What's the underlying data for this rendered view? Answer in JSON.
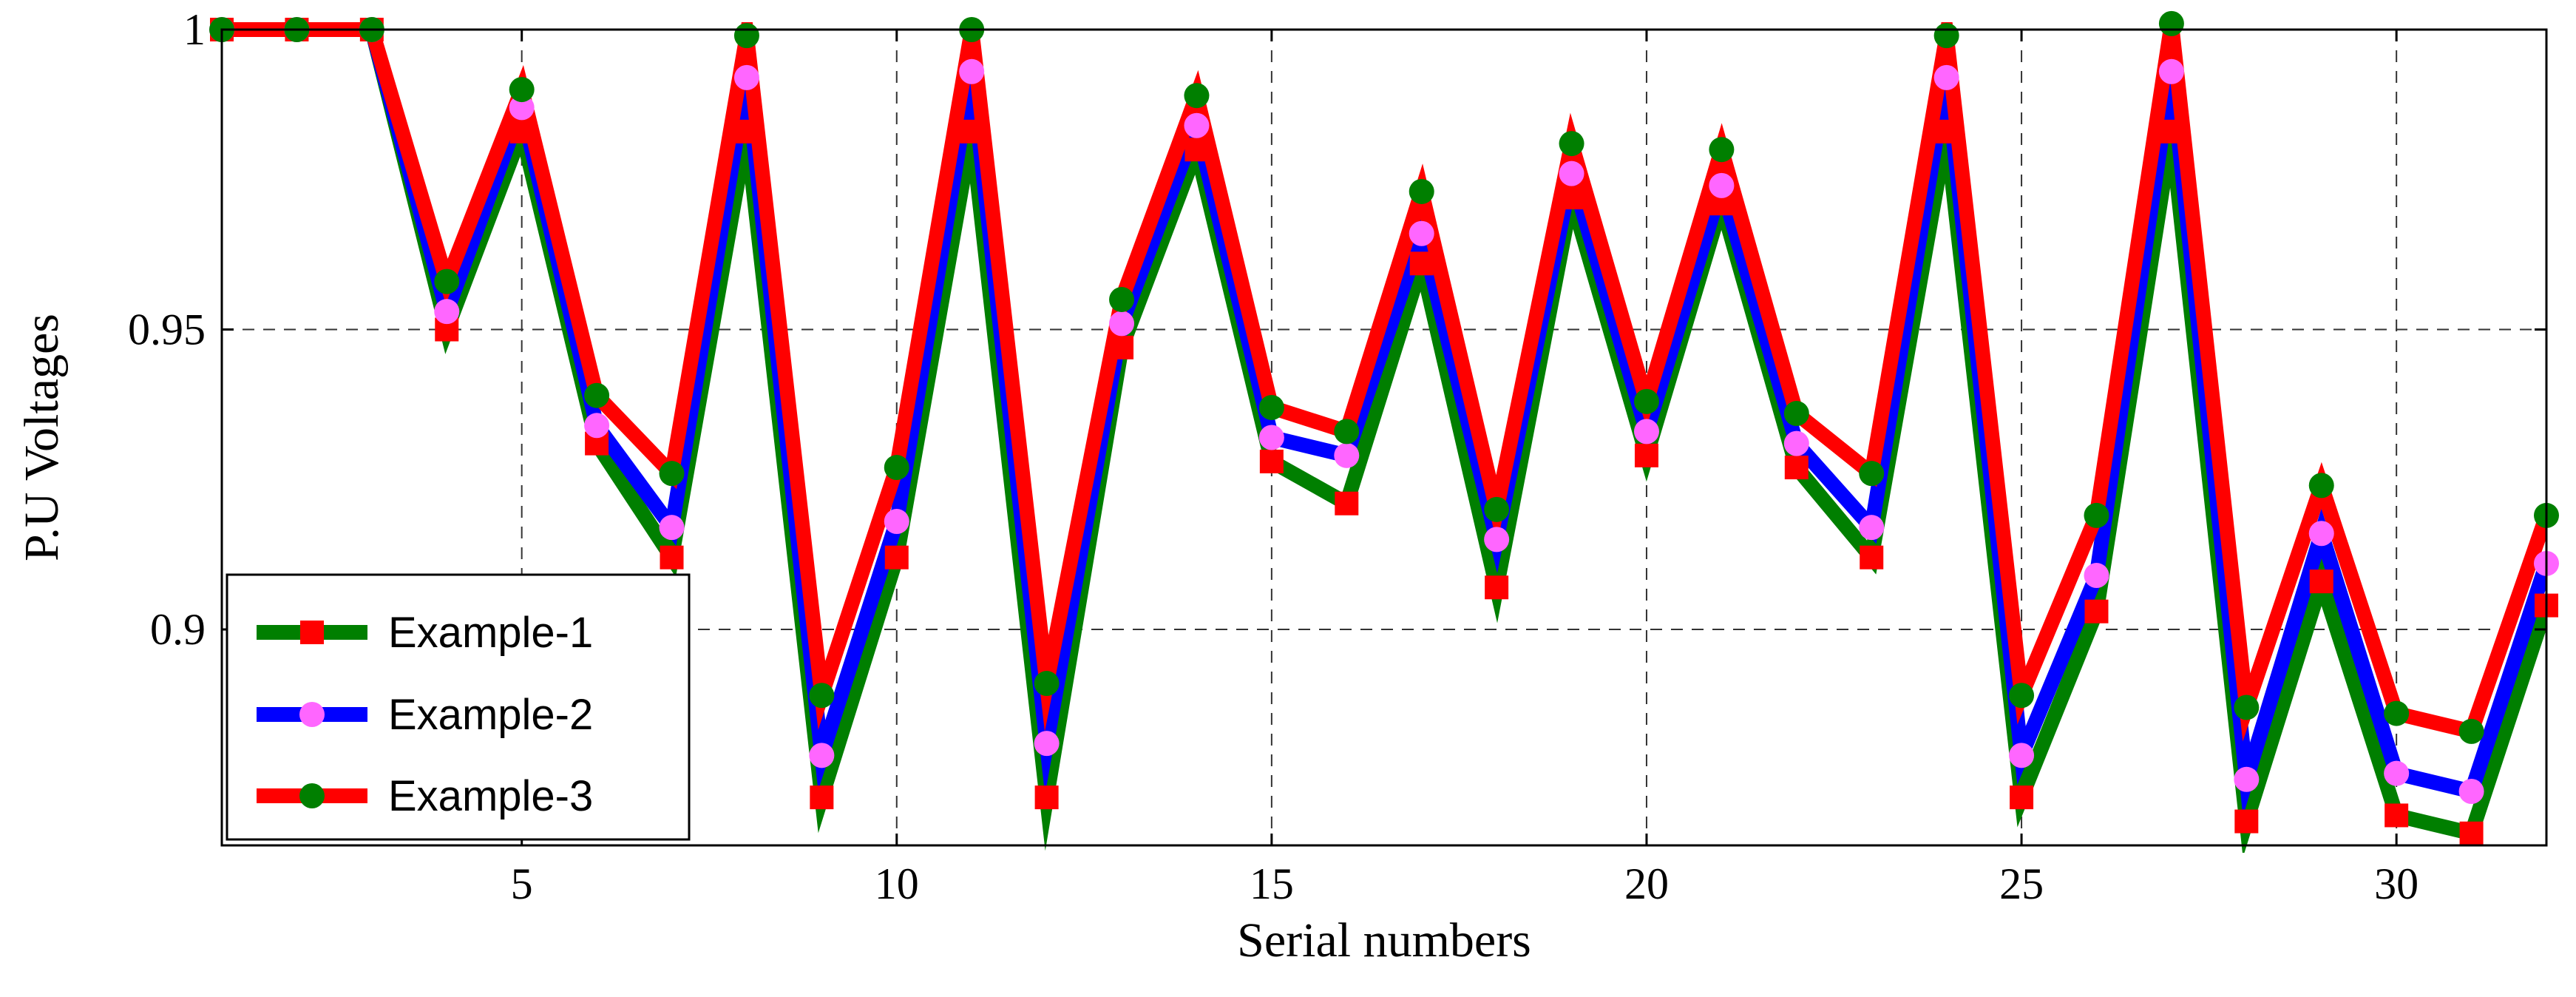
{
  "chart_data": {
    "type": "line",
    "xlabel": "Serial numbers",
    "ylabel": "P.U Voltages",
    "xlim": [
      1,
      32
    ],
    "ylim": [
      0.864,
      1.0
    ],
    "xticks": [
      5,
      10,
      15,
      20,
      25,
      30
    ],
    "yticks": [
      0.9,
      0.95,
      1
    ],
    "ytick_labels": [
      "0.9",
      "0.95",
      "1"
    ],
    "grid": true,
    "legend_position": "bottom-left",
    "x": [
      1,
      2,
      3,
      4,
      5,
      6,
      7,
      8,
      9,
      10,
      11,
      12,
      13,
      14,
      15,
      16,
      17,
      18,
      19,
      20,
      21,
      22,
      23,
      24,
      25,
      26,
      27,
      28,
      29,
      30,
      31,
      32
    ],
    "series": [
      {
        "name": "Example-1",
        "color": "#007f00",
        "marker_color": "#ff0000",
        "marker": "square",
        "values": [
          1.0,
          1.0,
          1.0,
          0.95,
          0.983,
          0.931,
          0.912,
          0.983,
          0.872,
          0.912,
          0.983,
          0.872,
          0.947,
          0.98,
          0.928,
          0.921,
          0.961,
          0.907,
          0.972,
          0.929,
          0.971,
          0.927,
          0.912,
          0.983,
          0.872,
          0.903,
          0.983,
          0.868,
          0.908,
          0.869,
          0.866,
          0.904
        ]
      },
      {
        "name": "Example-2",
        "color": "#0000ff",
        "marker_color": "#ff66ff",
        "marker": "circle",
        "values": [
          1.0,
          1.0,
          1.0,
          0.953,
          0.987,
          0.934,
          0.917,
          0.992,
          0.879,
          0.918,
          0.993,
          0.881,
          0.951,
          0.984,
          0.932,
          0.929,
          0.966,
          0.915,
          0.976,
          0.933,
          0.974,
          0.931,
          0.917,
          0.992,
          0.879,
          0.909,
          0.993,
          0.875,
          0.916,
          0.876,
          0.873,
          0.911
        ]
      },
      {
        "name": "Example-3",
        "color": "#ff0000",
        "marker_color": "#007f00",
        "marker": "circle",
        "values": [
          1.0,
          1.0,
          1.0,
          0.958,
          0.99,
          0.939,
          0.926,
          0.999,
          0.889,
          0.927,
          1.0,
          0.891,
          0.955,
          0.989,
          0.937,
          0.933,
          0.973,
          0.92,
          0.981,
          0.938,
          0.98,
          0.936,
          0.926,
          0.999,
          0.889,
          0.919,
          1.001,
          0.887,
          0.924,
          0.886,
          0.883,
          0.919
        ]
      }
    ]
  }
}
